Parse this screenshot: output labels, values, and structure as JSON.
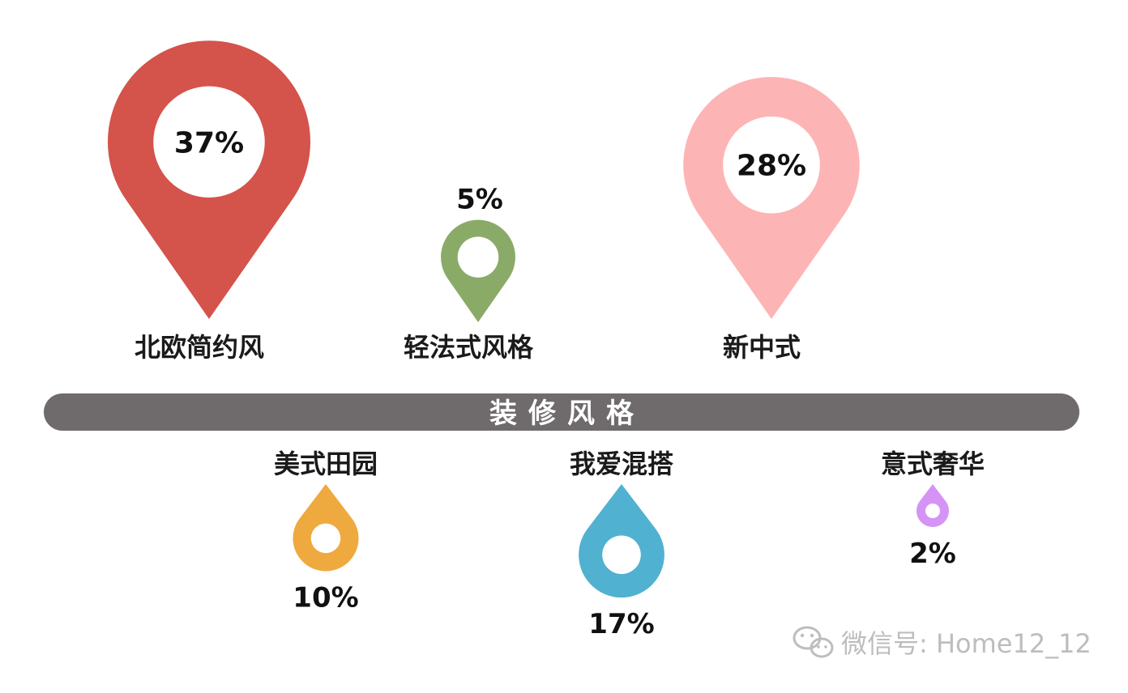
{
  "chart_data": {
    "type": "pie",
    "title": "装修风格",
    "categories": [
      "北欧简约风",
      "轻法式风格",
      "新中式",
      "美式田园",
      "我爱混搭",
      "意式奢华"
    ],
    "values": [
      37,
      5,
      28,
      10,
      17,
      2
    ],
    "value_labels": [
      "37%",
      "5%",
      "28%",
      "10%",
      "17%",
      "2%"
    ],
    "colors": [
      "#d4534b",
      "#8aab68",
      "#fdb4b5",
      "#eeaa3f",
      "#51b1d0",
      "#d593f6"
    ],
    "band_color": "#6f6b6d"
  },
  "watermark": {
    "icon": "wechat-icon",
    "text": "微信号: Home12_12"
  }
}
